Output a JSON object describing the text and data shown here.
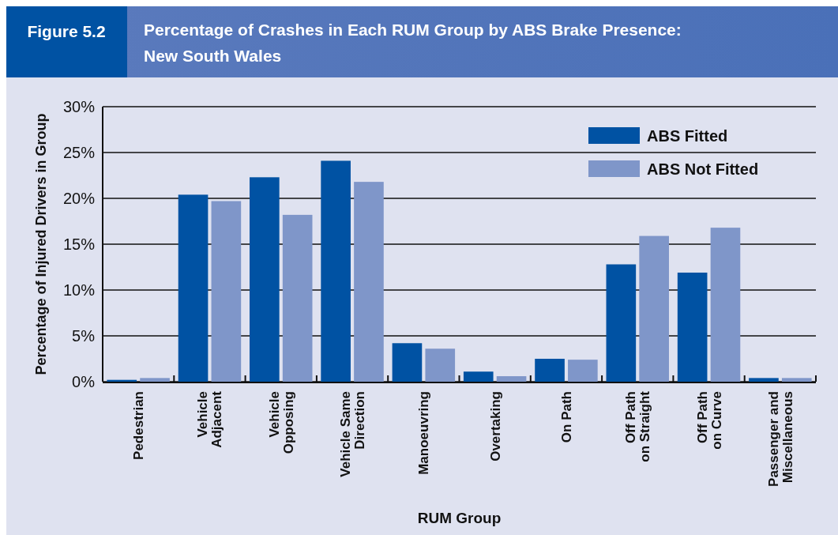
{
  "chart_data": {
    "type": "bar",
    "title": "Percentage of Crashes in Each RUM Group by ABS Brake Presence: New South Wales",
    "annotations": [
      "Figure 5.2"
    ],
    "xlabel": "RUM Group",
    "ylabel": "Percentage of Injured Drivers in Group",
    "categories": [
      "Pedestrian",
      "Vehicle\nAdjacent",
      "Vehicle\nOpposing",
      "Vehicle Same\nDirection",
      "Manoeuvring",
      "Overtaking",
      "On Path",
      "Off Path\non Straight",
      "Off Path\non Curve",
      "Passenger and\nMiscellaneous"
    ],
    "series": [
      {
        "name": "ABS Fitted",
        "color": "#0052a3",
        "values": [
          0.2,
          20.4,
          22.3,
          24.1,
          4.2,
          1.1,
          2.5,
          12.8,
          11.9,
          0.4
        ]
      },
      {
        "name": "ABS Not Fitted",
        "color": "#7f96c9",
        "values": [
          0.4,
          19.7,
          18.2,
          21.8,
          3.6,
          0.6,
          2.4,
          15.9,
          16.8,
          0.4
        ]
      }
    ],
    "ylim": [
      0,
      30
    ],
    "yticks": [
      {
        "value": 0,
        "label": "0%"
      },
      {
        "value": 5,
        "label": "5%"
      },
      {
        "value": 10,
        "label": "10%"
      },
      {
        "value": 15,
        "label": "15%"
      },
      {
        "value": 20,
        "label": "20%"
      },
      {
        "value": 25,
        "label": "25%"
      },
      {
        "value": 30,
        "label": "30%"
      }
    ],
    "grid": "y",
    "legend": "top right"
  }
}
